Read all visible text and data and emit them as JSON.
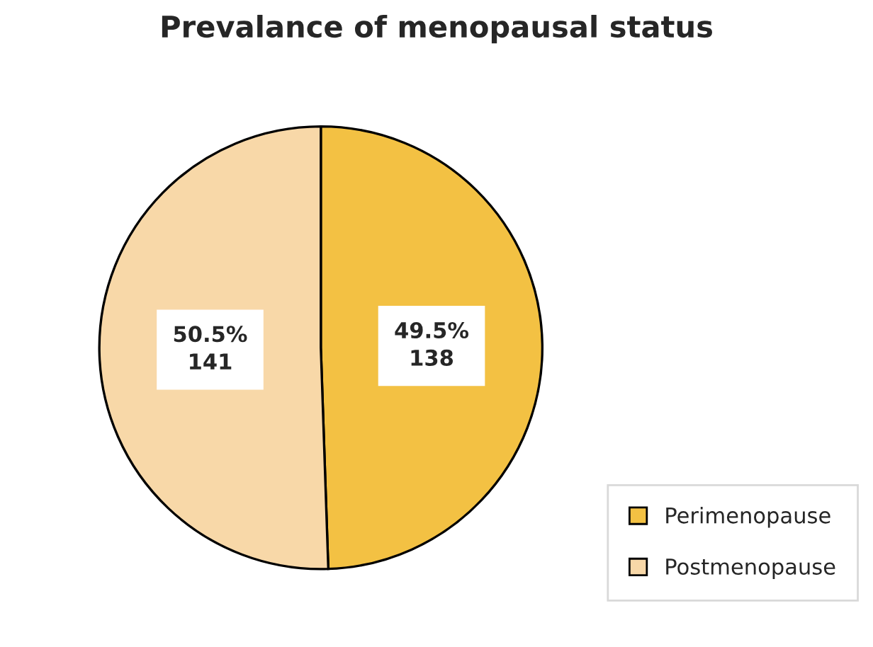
{
  "chart_data": {
    "type": "pie",
    "title": "Prevalance of menopausal status",
    "categories": [
      "Perimenopause",
      "Postmenopause"
    ],
    "values": [
      138,
      141
    ],
    "value_labels": [
      "49.5%\n138",
      "50.5%\n141"
    ],
    "colors": [
      "#f3c143",
      "#f8d8a8"
    ],
    "legend": "bottom right"
  }
}
